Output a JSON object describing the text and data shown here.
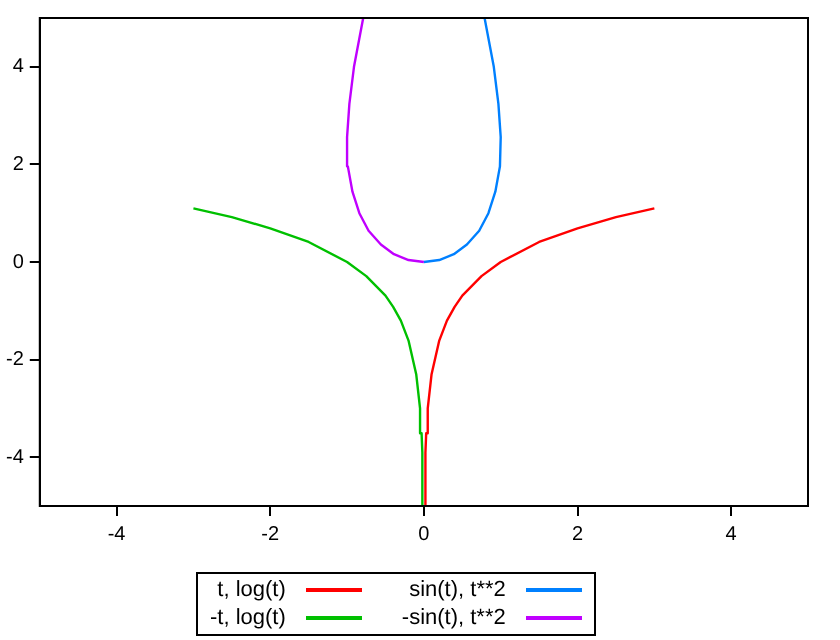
{
  "chart_data": {
    "type": "line",
    "xlim": [
      -5,
      5
    ],
    "ylim": [
      -5,
      5
    ],
    "xticks": [
      -4,
      -2,
      0,
      2,
      4
    ],
    "yticks": [
      -4,
      -2,
      0,
      2,
      4
    ],
    "grid": false,
    "legend": "bottom",
    "marker": "none",
    "series": [
      {
        "name": "t, log(t)",
        "color": "#ff0000",
        "x": [
          0.0067,
          0.02,
          0.03,
          0.05,
          0.1,
          0.2,
          0.3,
          0.4,
          0.5,
          0.75,
          1,
          1.5,
          2,
          2.5,
          3
        ],
        "values": [
          -5,
          -3.91,
          -3.51,
          -3.0,
          -2.3,
          -1.61,
          -1.2,
          -0.92,
          -0.69,
          -0.29,
          0,
          0.41,
          0.69,
          0.92,
          1.1
        ]
      },
      {
        "name": "-t, log(t)",
        "color": "#00c000",
        "x": [
          -0.0067,
          -0.02,
          -0.03,
          -0.05,
          -0.1,
          -0.2,
          -0.3,
          -0.4,
          -0.5,
          -0.75,
          -1,
          -1.5,
          -2,
          -2.5,
          -3
        ],
        "values": [
          -5,
          -3.91,
          -3.51,
          -3.0,
          -2.3,
          -1.61,
          -1.2,
          -0.92,
          -0.69,
          -0.29,
          0,
          0.41,
          0.69,
          0.92,
          1.1
        ]
      },
      {
        "name": "sin(t), t**2",
        "color": "#0080ff",
        "x": [
          0,
          0.2,
          0.39,
          0.56,
          0.72,
          0.84,
          0.93,
          0.99,
          1.0,
          0.97,
          0.91,
          0.79
        ],
        "values": [
          0,
          0.04,
          0.16,
          0.36,
          0.64,
          1,
          1.44,
          1.96,
          2.56,
          3.24,
          4,
          5
        ]
      },
      {
        "name": "-sin(t), t**2",
        "color": "#c000ff",
        "x": [
          0,
          -0.2,
          -0.39,
          -0.56,
          -0.72,
          -0.84,
          -0.93,
          -0.99,
          -1.0,
          -0.97,
          -0.91,
          -0.79
        ],
        "values": [
          0,
          0.04,
          0.16,
          0.36,
          0.64,
          1,
          1.44,
          1.96,
          2.56,
          3.24,
          4,
          5
        ]
      }
    ]
  }
}
